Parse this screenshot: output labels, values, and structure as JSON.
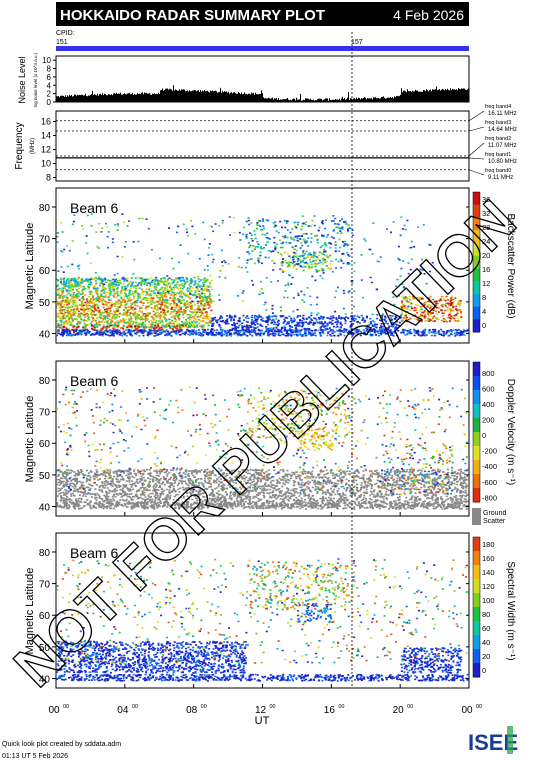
{
  "header": {
    "title": "HOKKAIDO RADAR SUMMARY PLOT",
    "date": "4 Feb 2026"
  },
  "cpid": {
    "label": "CPID:",
    "values": [
      "151",
      "157"
    ],
    "switch_hour": 17.2
  },
  "noise": {
    "ylabel": "Noise Level",
    "ylabel_sub": "log noise level (x 10^4 a.u.)",
    "yticks": [
      "0",
      "2",
      "4",
      "6",
      "8",
      "10"
    ],
    "ylim": [
      0,
      11
    ]
  },
  "frequency": {
    "ylabel": "Frequency",
    "unit": "(MHz)",
    "yticks": [
      "8",
      "10",
      "12",
      "14",
      "16"
    ],
    "ylim": [
      7.5,
      17.5
    ],
    "bands": [
      {
        "label": "freq band4",
        "value": "16.11 MHz",
        "mhz": 16.11
      },
      {
        "label": "freq band3",
        "value": "14.64 MHz",
        "mhz": 14.64
      },
      {
        "label": "freq band2",
        "value": "11.07 MHz",
        "mhz": 11.07
      },
      {
        "label": "freq band1",
        "value": "10.80 MHz",
        "mhz": 10.8
      },
      {
        "label": "freq band0",
        "value": "9.11 MHz",
        "mhz": 9.11
      }
    ]
  },
  "chart_data": [
    {
      "type": "heatmap",
      "beam": "Beam  6",
      "ylabel": "Magnetic Latitude",
      "ylim": [
        37,
        86
      ],
      "yticks": [
        40,
        50,
        60,
        70,
        80
      ],
      "colorbar_label": "Backscatter Power (dB)",
      "colorbar_ticks": [
        "0",
        "4",
        "8",
        "12",
        "16",
        "20",
        "24",
        "28",
        "32",
        "36"
      ],
      "colorbar_range": [
        0,
        38
      ]
    },
    {
      "type": "heatmap",
      "beam": "Beam  6",
      "ylabel": "Magnetic Latitude",
      "ylim": [
        37,
        86
      ],
      "yticks": [
        40,
        50,
        60,
        70,
        80
      ],
      "colorbar_label": "Doppler Velocity (m s⁻¹)",
      "colorbar_ticks": [
        "800",
        "600",
        "400",
        "200",
        "0",
        "-200",
        "-400",
        "-600",
        "-800"
      ],
      "colorbar_range": [
        -900,
        900
      ],
      "ground_label": "Ground",
      "ground_label2": "Scatter"
    },
    {
      "type": "heatmap",
      "beam": "Beam  6",
      "ylabel": "Magnetic Latitude",
      "ylim": [
        37,
        86
      ],
      "yticks": [
        40,
        50,
        60,
        70,
        80
      ],
      "colorbar_label": "Spectral Width (m s⁻¹)",
      "colorbar_ticks": [
        "0",
        "20",
        "40",
        "60",
        "80",
        "100",
        "120",
        "140",
        "160",
        "180"
      ],
      "colorbar_range": [
        0,
        190
      ]
    }
  ],
  "xaxis": {
    "label": "UT",
    "ticks": [
      "00",
      "04",
      "08",
      "12",
      "16",
      "20",
      "00"
    ],
    "tick_sup": "00",
    "range_hours": [
      0,
      24
    ]
  },
  "watermark": "NOT FOR PUBLICATION",
  "footer": {
    "line1": "Quick look plot created by sddata.adm",
    "line2": "01:13 UT  5 Feb 2026",
    "logo": "ISEE"
  }
}
